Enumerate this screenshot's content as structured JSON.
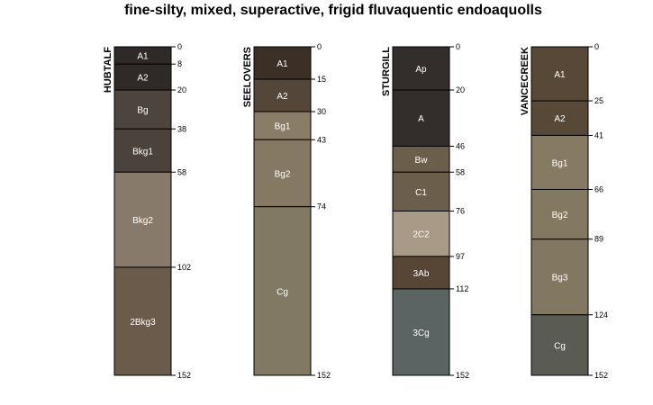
{
  "chart_data": {
    "type": "soil-profile",
    "title": "fine-silty, mixed, superactive, frigid fluvaquentic endoaquolls",
    "depth_unit": "cm",
    "depth_range": [
      0,
      152
    ],
    "profiles": [
      {
        "name": "HUBTALF",
        "horizons": [
          {
            "name": "A1",
            "top": 0,
            "bottom": 8,
            "color": "#2f2a27",
            "text_color": "#ffffff"
          },
          {
            "name": "A2",
            "top": 8,
            "bottom": 20,
            "color": "#2f2a27",
            "text_color": "#ffffff"
          },
          {
            "name": "Bg",
            "top": 20,
            "bottom": 38,
            "color": "#4d453d",
            "text_color": "#ffffff"
          },
          {
            "name": "Bkg1",
            "top": 38,
            "bottom": 58,
            "color": "#4a423b",
            "text_color": "#ffffff"
          },
          {
            "name": "Bkg2",
            "top": 58,
            "bottom": 102,
            "color": "#887a6a",
            "text_color": "#ffffff"
          },
          {
            "name": "2Bkg3",
            "top": 102,
            "bottom": 152,
            "color": "#6b5b4a",
            "text_color": "#ffffff"
          }
        ],
        "depth_ticks": [
          0,
          8,
          20,
          38,
          58,
          102,
          152
        ]
      },
      {
        "name": "SEELOVERS",
        "horizons": [
          {
            "name": "A1",
            "top": 0,
            "bottom": 15,
            "color": "#3c2f26",
            "text_color": "#ffffff"
          },
          {
            "name": "A2",
            "top": 15,
            "bottom": 30,
            "color": "#54473a",
            "text_color": "#ffffff"
          },
          {
            "name": "Bg1",
            "top": 30,
            "bottom": 43,
            "color": "#8a7d67",
            "text_color": "#ffffff"
          },
          {
            "name": "Bg2",
            "top": 43,
            "bottom": 74,
            "color": "#857964",
            "text_color": "#ffffff"
          },
          {
            "name": "Cg",
            "top": 74,
            "bottom": 152,
            "color": "#827964",
            "text_color": "#ffffff"
          }
        ],
        "depth_ticks": [
          0,
          15,
          30,
          43,
          74,
          152
        ]
      },
      {
        "name": "STURGILL",
        "horizons": [
          {
            "name": "Ap",
            "top": 0,
            "bottom": 20,
            "color": "#332e2b",
            "text_color": "#ffffff"
          },
          {
            "name": "A",
            "top": 20,
            "bottom": 46,
            "color": "#332e2b",
            "text_color": "#ffffff"
          },
          {
            "name": "Bw",
            "top": 46,
            "bottom": 58,
            "color": "#6b5e4b",
            "text_color": "#ffffff"
          },
          {
            "name": "C1",
            "top": 58,
            "bottom": 76,
            "color": "#6b5e4b",
            "text_color": "#ffffff"
          },
          {
            "name": "2C2",
            "top": 76,
            "bottom": 97,
            "color": "#a89a86",
            "text_color": "#ffffff"
          },
          {
            "name": "3Ab",
            "top": 97,
            "bottom": 112,
            "color": "#574636",
            "text_color": "#ffffff"
          },
          {
            "name": "3Cg",
            "top": 112,
            "bottom": 152,
            "color": "#5a6563",
            "text_color": "#ffffff"
          }
        ],
        "depth_ticks": [
          0,
          20,
          46,
          58,
          76,
          97,
          112,
          152
        ]
      },
      {
        "name": "VANCECREEK",
        "horizons": [
          {
            "name": "A1",
            "top": 0,
            "bottom": 25,
            "color": "#574838",
            "text_color": "#ffffff"
          },
          {
            "name": "A2",
            "top": 25,
            "bottom": 41,
            "color": "#574838",
            "text_color": "#ffffff"
          },
          {
            "name": "Bg1",
            "top": 41,
            "bottom": 66,
            "color": "#877a63",
            "text_color": "#ffffff"
          },
          {
            "name": "Bg2",
            "top": 66,
            "bottom": 89,
            "color": "#837860",
            "text_color": "#ffffff"
          },
          {
            "name": "Bg3",
            "top": 89,
            "bottom": 124,
            "color": "#827761",
            "text_color": "#ffffff"
          },
          {
            "name": "Cg",
            "top": 124,
            "bottom": 152,
            "color": "#5a5b53",
            "text_color": "#ffffff"
          }
        ],
        "depth_ticks": [
          0,
          25,
          41,
          66,
          89,
          124,
          152
        ]
      }
    ]
  }
}
